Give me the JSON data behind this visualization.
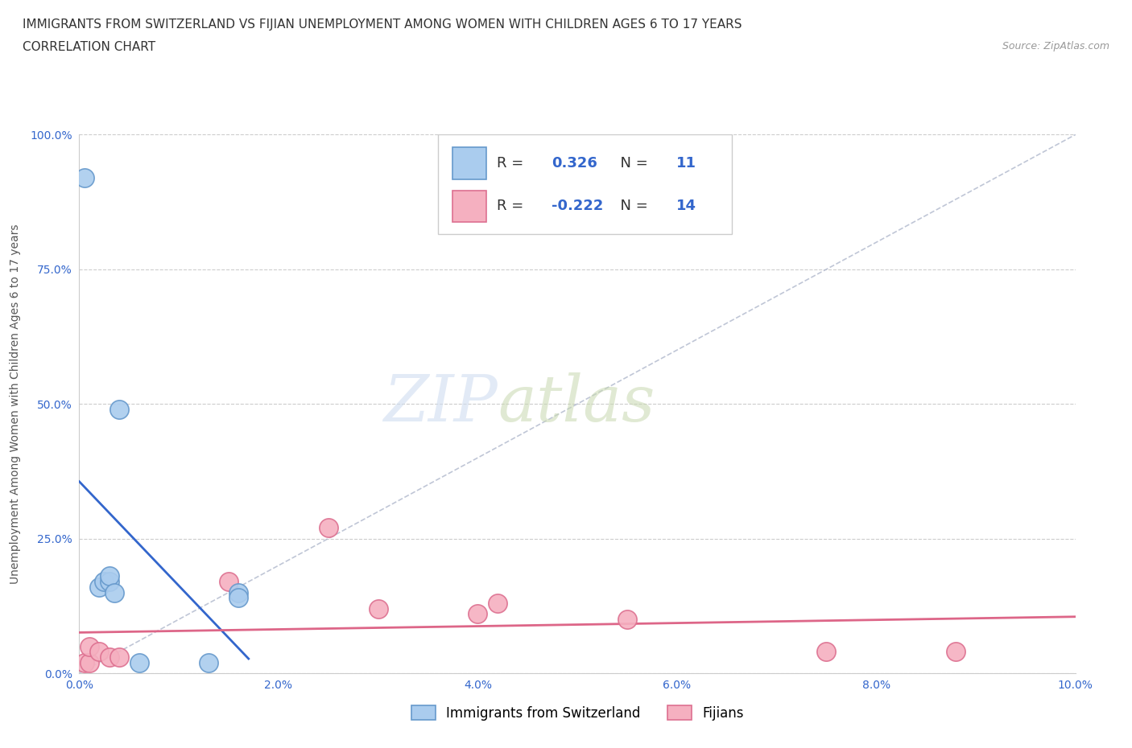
{
  "title": "IMMIGRANTS FROM SWITZERLAND VS FIJIAN UNEMPLOYMENT AMONG WOMEN WITH CHILDREN AGES 6 TO 17 YEARS",
  "subtitle": "CORRELATION CHART",
  "source": "Source: ZipAtlas.com",
  "ylabel": "Unemployment Among Women with Children Ages 6 to 17 years",
  "xlim": [
    0.0,
    0.1
  ],
  "ylim": [
    0.0,
    1.0
  ],
  "xticks": [
    0.0,
    0.02,
    0.04,
    0.06,
    0.08,
    0.1
  ],
  "xtick_labels": [
    "0.0%",
    "2.0%",
    "4.0%",
    "6.0%",
    "8.0%",
    "10.0%"
  ],
  "yticks": [
    0.0,
    0.25,
    0.5,
    0.75,
    1.0
  ],
  "ytick_labels": [
    "0.0%",
    "25.0%",
    "50.0%",
    "75.0%",
    "100.0%"
  ],
  "series1_name": "Immigrants from Switzerland",
  "series1_color": "#aaccee",
  "series1_edge_color": "#6699cc",
  "series1_R": 0.326,
  "series1_N": 11,
  "series1_x": [
    0.0005,
    0.002,
    0.0025,
    0.003,
    0.003,
    0.0035,
    0.004,
    0.006,
    0.013,
    0.016,
    0.016
  ],
  "series1_y": [
    0.92,
    0.16,
    0.17,
    0.17,
    0.18,
    0.15,
    0.49,
    0.02,
    0.02,
    0.15,
    0.14
  ],
  "series1_line_color": "#3366cc",
  "series2_name": "Fijians",
  "series2_color": "#f5b0c0",
  "series2_edge_color": "#dd7090",
  "series2_R": -0.222,
  "series2_N": 14,
  "series2_x": [
    0.0005,
    0.001,
    0.001,
    0.002,
    0.003,
    0.004,
    0.015,
    0.025,
    0.03,
    0.04,
    0.042,
    0.055,
    0.075,
    0.088
  ],
  "series2_y": [
    0.02,
    0.02,
    0.05,
    0.04,
    0.03,
    0.03,
    0.17,
    0.27,
    0.12,
    0.11,
    0.13,
    0.1,
    0.04,
    0.04
  ],
  "series2_line_color": "#dd6688",
  "ref_line_color": "#b0b8cc",
  "watermark_zip": "ZIP",
  "watermark_atlas": "atlas",
  "background_color": "#ffffff",
  "grid_color": "#cccccc",
  "title_fontsize": 11,
  "subtitle_fontsize": 11,
  "axis_fontsize": 10,
  "tick_fontsize": 10,
  "legend_fontsize": 13
}
